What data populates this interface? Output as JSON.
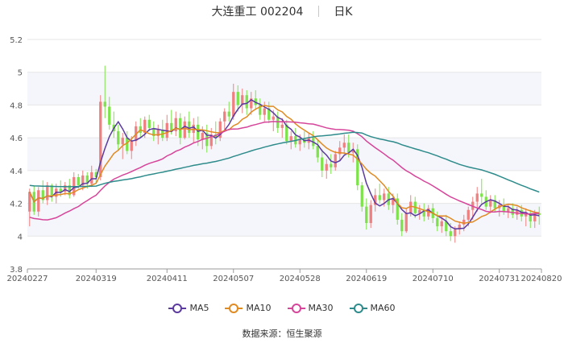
{
  "header": {
    "title": "大连重工 002204",
    "period": "日K"
  },
  "source_text": "数据来源：恒生聚源",
  "colors": {
    "up": "#f08080",
    "down": "#7ee34a",
    "grid": "#e6e6e6",
    "band": "#f5f6fb"
  },
  "chart_data": {
    "type": "candlestick",
    "y_ticks": [
      "3.8",
      "4",
      "4.2",
      "4.4",
      "4.6",
      "4.8",
      "5",
      "5.2"
    ],
    "ylim": [
      3.8,
      5.2
    ],
    "x_tick_labels": [
      {
        "label": "20240227",
        "index": 0
      },
      {
        "label": "20240319",
        "index": 15
      },
      {
        "label": "20240411",
        "index": 31
      },
      {
        "label": "20240507",
        "index": 46
      },
      {
        "label": "20240528",
        "index": 61
      },
      {
        "label": "20240619",
        "index": 76
      },
      {
        "label": "20240710",
        "index": 91
      },
      {
        "label": "20240731",
        "index": 106
      },
      {
        "label": "20240820",
        "index": 120
      }
    ],
    "candles": [
      {
        "o": 4.15,
        "h": 4.29,
        "l": 4.06,
        "c": 4.27
      },
      {
        "o": 4.27,
        "h": 4.31,
        "l": 4.13,
        "c": 4.15
      },
      {
        "o": 4.15,
        "h": 4.3,
        "l": 4.12,
        "c": 4.28
      },
      {
        "o": 4.28,
        "h": 4.34,
        "l": 4.2,
        "c": 4.22
      },
      {
        "o": 4.22,
        "h": 4.33,
        "l": 4.19,
        "c": 4.31
      },
      {
        "o": 4.31,
        "h": 4.32,
        "l": 4.21,
        "c": 4.24
      },
      {
        "o": 4.24,
        "h": 4.32,
        "l": 4.2,
        "c": 4.29
      },
      {
        "o": 4.29,
        "h": 4.34,
        "l": 4.24,
        "c": 4.27
      },
      {
        "o": 4.27,
        "h": 4.33,
        "l": 4.25,
        "c": 4.31
      },
      {
        "o": 4.31,
        "h": 4.35,
        "l": 4.23,
        "c": 4.25
      },
      {
        "o": 4.25,
        "h": 4.39,
        "l": 4.24,
        "c": 4.36
      },
      {
        "o": 4.36,
        "h": 4.38,
        "l": 4.29,
        "c": 4.31
      },
      {
        "o": 4.31,
        "h": 4.4,
        "l": 4.28,
        "c": 4.37
      },
      {
        "o": 4.37,
        "h": 4.39,
        "l": 4.29,
        "c": 4.32
      },
      {
        "o": 4.32,
        "h": 4.43,
        "l": 4.3,
        "c": 4.39
      },
      {
        "o": 4.39,
        "h": 4.41,
        "l": 4.32,
        "c": 4.36
      },
      {
        "o": 4.36,
        "h": 4.86,
        "l": 4.34,
        "c": 4.82
      },
      {
        "o": 4.82,
        "h": 5.04,
        "l": 4.72,
        "c": 4.79
      },
      {
        "o": 4.79,
        "h": 4.85,
        "l": 4.65,
        "c": 4.68
      },
      {
        "o": 4.68,
        "h": 4.76,
        "l": 4.6,
        "c": 4.64
      },
      {
        "o": 4.64,
        "h": 4.68,
        "l": 4.52,
        "c": 4.56
      },
      {
        "o": 4.56,
        "h": 4.63,
        "l": 4.47,
        "c": 4.6
      },
      {
        "o": 4.6,
        "h": 4.64,
        "l": 4.5,
        "c": 4.52
      },
      {
        "o": 4.52,
        "h": 4.61,
        "l": 4.47,
        "c": 4.58
      },
      {
        "o": 4.58,
        "h": 4.7,
        "l": 4.55,
        "c": 4.67
      },
      {
        "o": 4.67,
        "h": 4.72,
        "l": 4.6,
        "c": 4.63
      },
      {
        "o": 4.63,
        "h": 4.73,
        "l": 4.6,
        "c": 4.71
      },
      {
        "o": 4.71,
        "h": 4.74,
        "l": 4.64,
        "c": 4.66
      },
      {
        "o": 4.66,
        "h": 4.7,
        "l": 4.58,
        "c": 4.61
      },
      {
        "o": 4.61,
        "h": 4.68,
        "l": 4.56,
        "c": 4.65
      },
      {
        "o": 4.65,
        "h": 4.71,
        "l": 4.58,
        "c": 4.6
      },
      {
        "o": 4.6,
        "h": 4.74,
        "l": 4.58,
        "c": 4.69
      },
      {
        "o": 4.69,
        "h": 4.77,
        "l": 4.62,
        "c": 4.64
      },
      {
        "o": 4.64,
        "h": 4.76,
        "l": 4.61,
        "c": 4.72
      },
      {
        "o": 4.72,
        "h": 4.75,
        "l": 4.56,
        "c": 4.6
      },
      {
        "o": 4.6,
        "h": 4.73,
        "l": 4.59,
        "c": 4.7
      },
      {
        "o": 4.7,
        "h": 4.76,
        "l": 4.6,
        "c": 4.63
      },
      {
        "o": 4.63,
        "h": 4.72,
        "l": 4.57,
        "c": 4.68
      },
      {
        "o": 4.68,
        "h": 4.73,
        "l": 4.55,
        "c": 4.59
      },
      {
        "o": 4.59,
        "h": 4.67,
        "l": 4.53,
        "c": 4.63
      },
      {
        "o": 4.63,
        "h": 4.68,
        "l": 4.51,
        "c": 4.55
      },
      {
        "o": 4.55,
        "h": 4.66,
        "l": 4.53,
        "c": 4.62
      },
      {
        "o": 4.62,
        "h": 4.7,
        "l": 4.56,
        "c": 4.6
      },
      {
        "o": 4.6,
        "h": 4.72,
        "l": 4.58,
        "c": 4.7
      },
      {
        "o": 4.7,
        "h": 4.78,
        "l": 4.65,
        "c": 4.76
      },
      {
        "o": 4.76,
        "h": 4.82,
        "l": 4.7,
        "c": 4.73
      },
      {
        "o": 4.73,
        "h": 4.93,
        "l": 4.71,
        "c": 4.88
      },
      {
        "o": 4.88,
        "h": 4.92,
        "l": 4.76,
        "c": 4.8
      },
      {
        "o": 4.8,
        "h": 4.9,
        "l": 4.75,
        "c": 4.86
      },
      {
        "o": 4.86,
        "h": 4.89,
        "l": 4.74,
        "c": 4.78
      },
      {
        "o": 4.78,
        "h": 4.88,
        "l": 4.74,
        "c": 4.84
      },
      {
        "o": 4.84,
        "h": 4.89,
        "l": 4.77,
        "c": 4.8
      },
      {
        "o": 4.8,
        "h": 4.84,
        "l": 4.71,
        "c": 4.74
      },
      {
        "o": 4.74,
        "h": 4.82,
        "l": 4.7,
        "c": 4.78
      },
      {
        "o": 4.78,
        "h": 4.82,
        "l": 4.69,
        "c": 4.71
      },
      {
        "o": 4.71,
        "h": 4.77,
        "l": 4.64,
        "c": 4.73
      },
      {
        "o": 4.73,
        "h": 4.76,
        "l": 4.63,
        "c": 4.66
      },
      {
        "o": 4.66,
        "h": 4.72,
        "l": 4.6,
        "c": 4.68
      },
      {
        "o": 4.68,
        "h": 4.71,
        "l": 4.56,
        "c": 4.58
      },
      {
        "o": 4.58,
        "h": 4.64,
        "l": 4.53,
        "c": 4.61
      },
      {
        "o": 4.61,
        "h": 4.66,
        "l": 4.54,
        "c": 4.56
      },
      {
        "o": 4.56,
        "h": 4.62,
        "l": 4.52,
        "c": 4.59
      },
      {
        "o": 4.59,
        "h": 4.64,
        "l": 4.54,
        "c": 4.57
      },
      {
        "o": 4.57,
        "h": 4.63,
        "l": 4.53,
        "c": 4.6
      },
      {
        "o": 4.6,
        "h": 4.64,
        "l": 4.53,
        "c": 4.55
      },
      {
        "o": 4.55,
        "h": 4.59,
        "l": 4.45,
        "c": 4.48
      },
      {
        "o": 4.48,
        "h": 4.53,
        "l": 4.36,
        "c": 4.4
      },
      {
        "o": 4.4,
        "h": 4.47,
        "l": 4.35,
        "c": 4.44
      },
      {
        "o": 4.44,
        "h": 4.5,
        "l": 4.38,
        "c": 4.42
      },
      {
        "o": 4.42,
        "h": 4.52,
        "l": 4.4,
        "c": 4.5
      },
      {
        "o": 4.5,
        "h": 4.58,
        "l": 4.46,
        "c": 4.54
      },
      {
        "o": 4.54,
        "h": 4.62,
        "l": 4.5,
        "c": 4.57
      },
      {
        "o": 4.57,
        "h": 4.62,
        "l": 4.48,
        "c": 4.51
      },
      {
        "o": 4.51,
        "h": 4.57,
        "l": 4.45,
        "c": 4.53
      },
      {
        "o": 4.53,
        "h": 4.56,
        "l": 4.28,
        "c": 4.31
      },
      {
        "o": 4.31,
        "h": 4.33,
        "l": 4.15,
        "c": 4.18
      },
      {
        "o": 4.18,
        "h": 4.23,
        "l": 4.04,
        "c": 4.08
      },
      {
        "o": 4.08,
        "h": 4.22,
        "l": 4.05,
        "c": 4.19
      },
      {
        "o": 4.19,
        "h": 4.29,
        "l": 4.15,
        "c": 4.25
      },
      {
        "o": 4.25,
        "h": 4.32,
        "l": 4.2,
        "c": 4.22
      },
      {
        "o": 4.22,
        "h": 4.29,
        "l": 4.18,
        "c": 4.26
      },
      {
        "o": 4.26,
        "h": 4.3,
        "l": 4.16,
        "c": 4.19
      },
      {
        "o": 4.19,
        "h": 4.26,
        "l": 4.14,
        "c": 4.23
      },
      {
        "o": 4.23,
        "h": 4.26,
        "l": 4.07,
        "c": 4.1
      },
      {
        "o": 4.1,
        "h": 4.14,
        "l": 4.0,
        "c": 4.03
      },
      {
        "o": 4.03,
        "h": 4.17,
        "l": 4.02,
        "c": 4.14
      },
      {
        "o": 4.14,
        "h": 4.25,
        "l": 4.12,
        "c": 4.21
      },
      {
        "o": 4.21,
        "h": 4.24,
        "l": 4.11,
        "c": 4.14
      },
      {
        "o": 4.14,
        "h": 4.19,
        "l": 4.1,
        "c": 4.16
      },
      {
        "o": 4.16,
        "h": 4.2,
        "l": 4.09,
        "c": 4.12
      },
      {
        "o": 4.12,
        "h": 4.19,
        "l": 4.1,
        "c": 4.17
      },
      {
        "o": 4.17,
        "h": 4.2,
        "l": 4.08,
        "c": 4.11
      },
      {
        "o": 4.11,
        "h": 4.15,
        "l": 4.03,
        "c": 4.06
      },
      {
        "o": 4.06,
        "h": 4.12,
        "l": 4.02,
        "c": 4.09
      },
      {
        "o": 4.09,
        "h": 4.13,
        "l": 4.0,
        "c": 4.03
      },
      {
        "o": 4.03,
        "h": 4.08,
        "l": 3.97,
        "c": 4.0
      },
      {
        "o": 4.0,
        "h": 4.06,
        "l": 3.96,
        "c": 4.04
      },
      {
        "o": 4.04,
        "h": 4.09,
        "l": 4.01,
        "c": 4.07
      },
      {
        "o": 4.07,
        "h": 4.13,
        "l": 4.03,
        "c": 4.1
      },
      {
        "o": 4.1,
        "h": 4.18,
        "l": 4.06,
        "c": 4.16
      },
      {
        "o": 4.16,
        "h": 4.24,
        "l": 4.1,
        "c": 4.21
      },
      {
        "o": 4.21,
        "h": 4.3,
        "l": 4.15,
        "c": 4.26
      },
      {
        "o": 4.26,
        "h": 4.35,
        "l": 4.2,
        "c": 4.24
      },
      {
        "o": 4.24,
        "h": 4.28,
        "l": 4.16,
        "c": 4.18
      },
      {
        "o": 4.18,
        "h": 4.25,
        "l": 4.14,
        "c": 4.22
      },
      {
        "o": 4.22,
        "h": 4.25,
        "l": 4.15,
        "c": 4.17
      },
      {
        "o": 4.17,
        "h": 4.22,
        "l": 4.12,
        "c": 4.19
      },
      {
        "o": 4.19,
        "h": 4.23,
        "l": 4.13,
        "c": 4.15
      },
      {
        "o": 4.15,
        "h": 4.19,
        "l": 4.11,
        "c": 4.17
      },
      {
        "o": 4.17,
        "h": 4.2,
        "l": 4.11,
        "c": 4.13
      },
      {
        "o": 4.13,
        "h": 4.18,
        "l": 4.1,
        "c": 4.16
      },
      {
        "o": 4.16,
        "h": 4.19,
        "l": 4.09,
        "c": 4.12
      },
      {
        "o": 4.12,
        "h": 4.17,
        "l": 4.06,
        "c": 4.14
      },
      {
        "o": 4.14,
        "h": 4.16,
        "l": 4.05,
        "c": 4.09
      },
      {
        "o": 4.09,
        "h": 4.16,
        "l": 4.05,
        "c": 4.14
      },
      {
        "o": 4.14,
        "h": 4.18,
        "l": 4.07,
        "c": 4.13
      }
    ],
    "series": [
      {
        "name": "MA5",
        "color": "#5b3aa0"
      },
      {
        "name": "MA10",
        "color": "#e08a22"
      },
      {
        "name": "MA30",
        "color": "#d6459a"
      },
      {
        "name": "MA60",
        "color": "#2e8b8b"
      }
    ],
    "ma_prior": {
      "MA30": [
        4.11,
        4.1,
        4.09,
        4.08,
        4.07,
        4.07,
        4.07,
        4.08,
        4.09,
        4.1,
        4.11,
        4.12,
        4.14,
        4.16,
        4.18,
        4.2,
        4.22,
        4.24,
        4.26,
        4.28,
        4.29,
        4.3,
        4.31,
        4.32,
        4.33,
        4.34,
        4.36,
        4.38,
        4.4,
        4.41
      ],
      "MA60": [
        4.31,
        4.31,
        4.31,
        4.31,
        4.31,
        4.31,
        4.31,
        4.31,
        4.31,
        4.31,
        4.31,
        4.31,
        4.31,
        4.31,
        4.31,
        4.31,
        4.31,
        4.31,
        4.31,
        4.31,
        4.31,
        4.31,
        4.31,
        4.31,
        4.31,
        4.31,
        4.31,
        4.31,
        4.31,
        4.31,
        4.31,
        4.31,
        4.31,
        4.31,
        4.31,
        4.31,
        4.31,
        4.31,
        4.31,
        4.31,
        4.31,
        4.31,
        4.31,
        4.31,
        4.31,
        4.31,
        4.31,
        4.31,
        4.31,
        4.31,
        4.31,
        4.31,
        4.31,
        4.31,
        4.31,
        4.31,
        4.31,
        4.31,
        4.31,
        4.31
      ]
    }
  }
}
